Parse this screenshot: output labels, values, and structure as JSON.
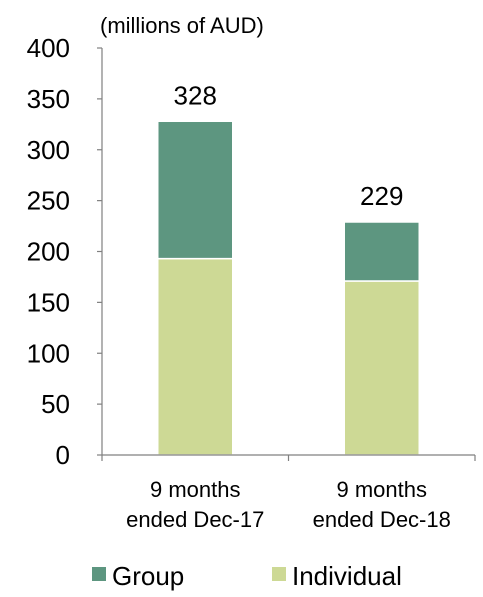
{
  "chart_data": {
    "type": "bar",
    "stacked": true,
    "title": "(millions of AUD)",
    "ylabel": "",
    "xlabel": "",
    "ylim": [
      0,
      400
    ],
    "yticks": [
      0,
      50,
      100,
      150,
      200,
      250,
      300,
      350,
      400
    ],
    "categories": [
      [
        "9 months",
        "ended Dec-17"
      ],
      [
        "9 months",
        "ended Dec-18"
      ]
    ],
    "series": [
      {
        "name": "Individual",
        "values": [
          193,
          171
        ],
        "color": "#cdd995"
      },
      {
        "name": "Group",
        "values": [
          135,
          58
        ],
        "color": "#5d9680"
      }
    ],
    "totals": [
      328,
      229
    ],
    "total_labels": [
      "328",
      "229"
    ],
    "legend": {
      "placement": "bottom",
      "order": [
        "Group",
        "Individual"
      ]
    },
    "grid": false
  }
}
